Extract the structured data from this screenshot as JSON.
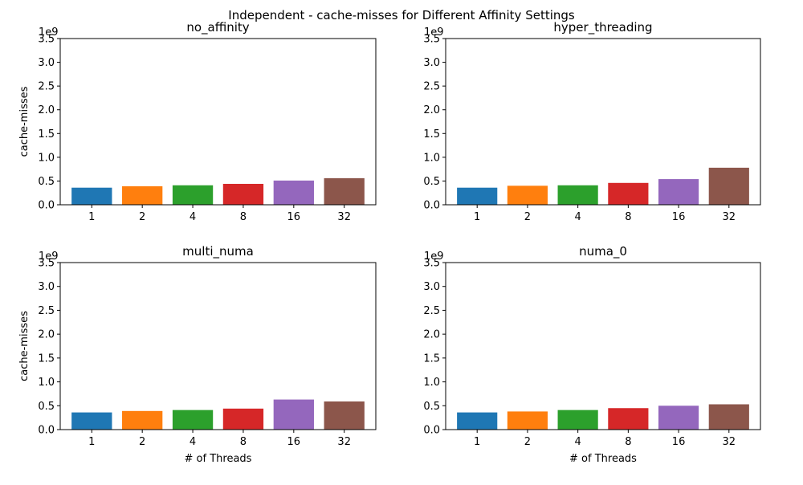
{
  "suptitle": "Independent - cache-misses for Different Affinity Settings",
  "chart_data": [
    {
      "type": "bar",
      "title": "no_affinity",
      "xlabel": "",
      "ylabel": "cache-misses",
      "offset_label": "1e9",
      "categories": [
        "1",
        "2",
        "4",
        "8",
        "16",
        "32"
      ],
      "values": [
        0.36,
        0.39,
        0.41,
        0.44,
        0.51,
        0.56
      ],
      "ylim": [
        0,
        3.5
      ],
      "yticks": [
        "0.0",
        "0.5",
        "1.0",
        "1.5",
        "2.0",
        "2.5",
        "3.0",
        "3.5"
      ],
      "grid": false
    },
    {
      "type": "bar",
      "title": "hyper_threading",
      "xlabel": "",
      "ylabel": "",
      "offset_label": "1e9",
      "categories": [
        "1",
        "2",
        "4",
        "8",
        "16",
        "32"
      ],
      "values": [
        0.36,
        0.4,
        0.41,
        0.46,
        0.54,
        0.78
      ],
      "ylim": [
        0,
        3.5
      ],
      "yticks": [
        "0.0",
        "0.5",
        "1.0",
        "1.5",
        "2.0",
        "2.5",
        "3.0",
        "3.5"
      ],
      "grid": false
    },
    {
      "type": "bar",
      "title": "multi_numa",
      "xlabel": "# of Threads",
      "ylabel": "cache-misses",
      "offset_label": "1e9",
      "categories": [
        "1",
        "2",
        "4",
        "8",
        "16",
        "32"
      ],
      "values": [
        0.36,
        0.39,
        0.41,
        0.44,
        0.63,
        0.59
      ],
      "ylim": [
        0,
        3.5
      ],
      "yticks": [
        "0.0",
        "0.5",
        "1.0",
        "1.5",
        "2.0",
        "2.5",
        "3.0",
        "3.5"
      ],
      "grid": false
    },
    {
      "type": "bar",
      "title": "numa_0",
      "xlabel": "# of Threads",
      "ylabel": "",
      "offset_label": "1e9",
      "categories": [
        "1",
        "2",
        "4",
        "8",
        "16",
        "32"
      ],
      "values": [
        0.36,
        0.38,
        0.41,
        0.45,
        0.5,
        0.53
      ],
      "ylim": [
        0,
        3.5
      ],
      "yticks": [
        "0.0",
        "0.5",
        "1.0",
        "1.5",
        "2.0",
        "2.5",
        "3.0",
        "3.5"
      ],
      "grid": false
    }
  ],
  "colors": [
    "#1f77b4",
    "#ff7f0e",
    "#2ca02c",
    "#d62728",
    "#9467bd",
    "#8c564b"
  ]
}
